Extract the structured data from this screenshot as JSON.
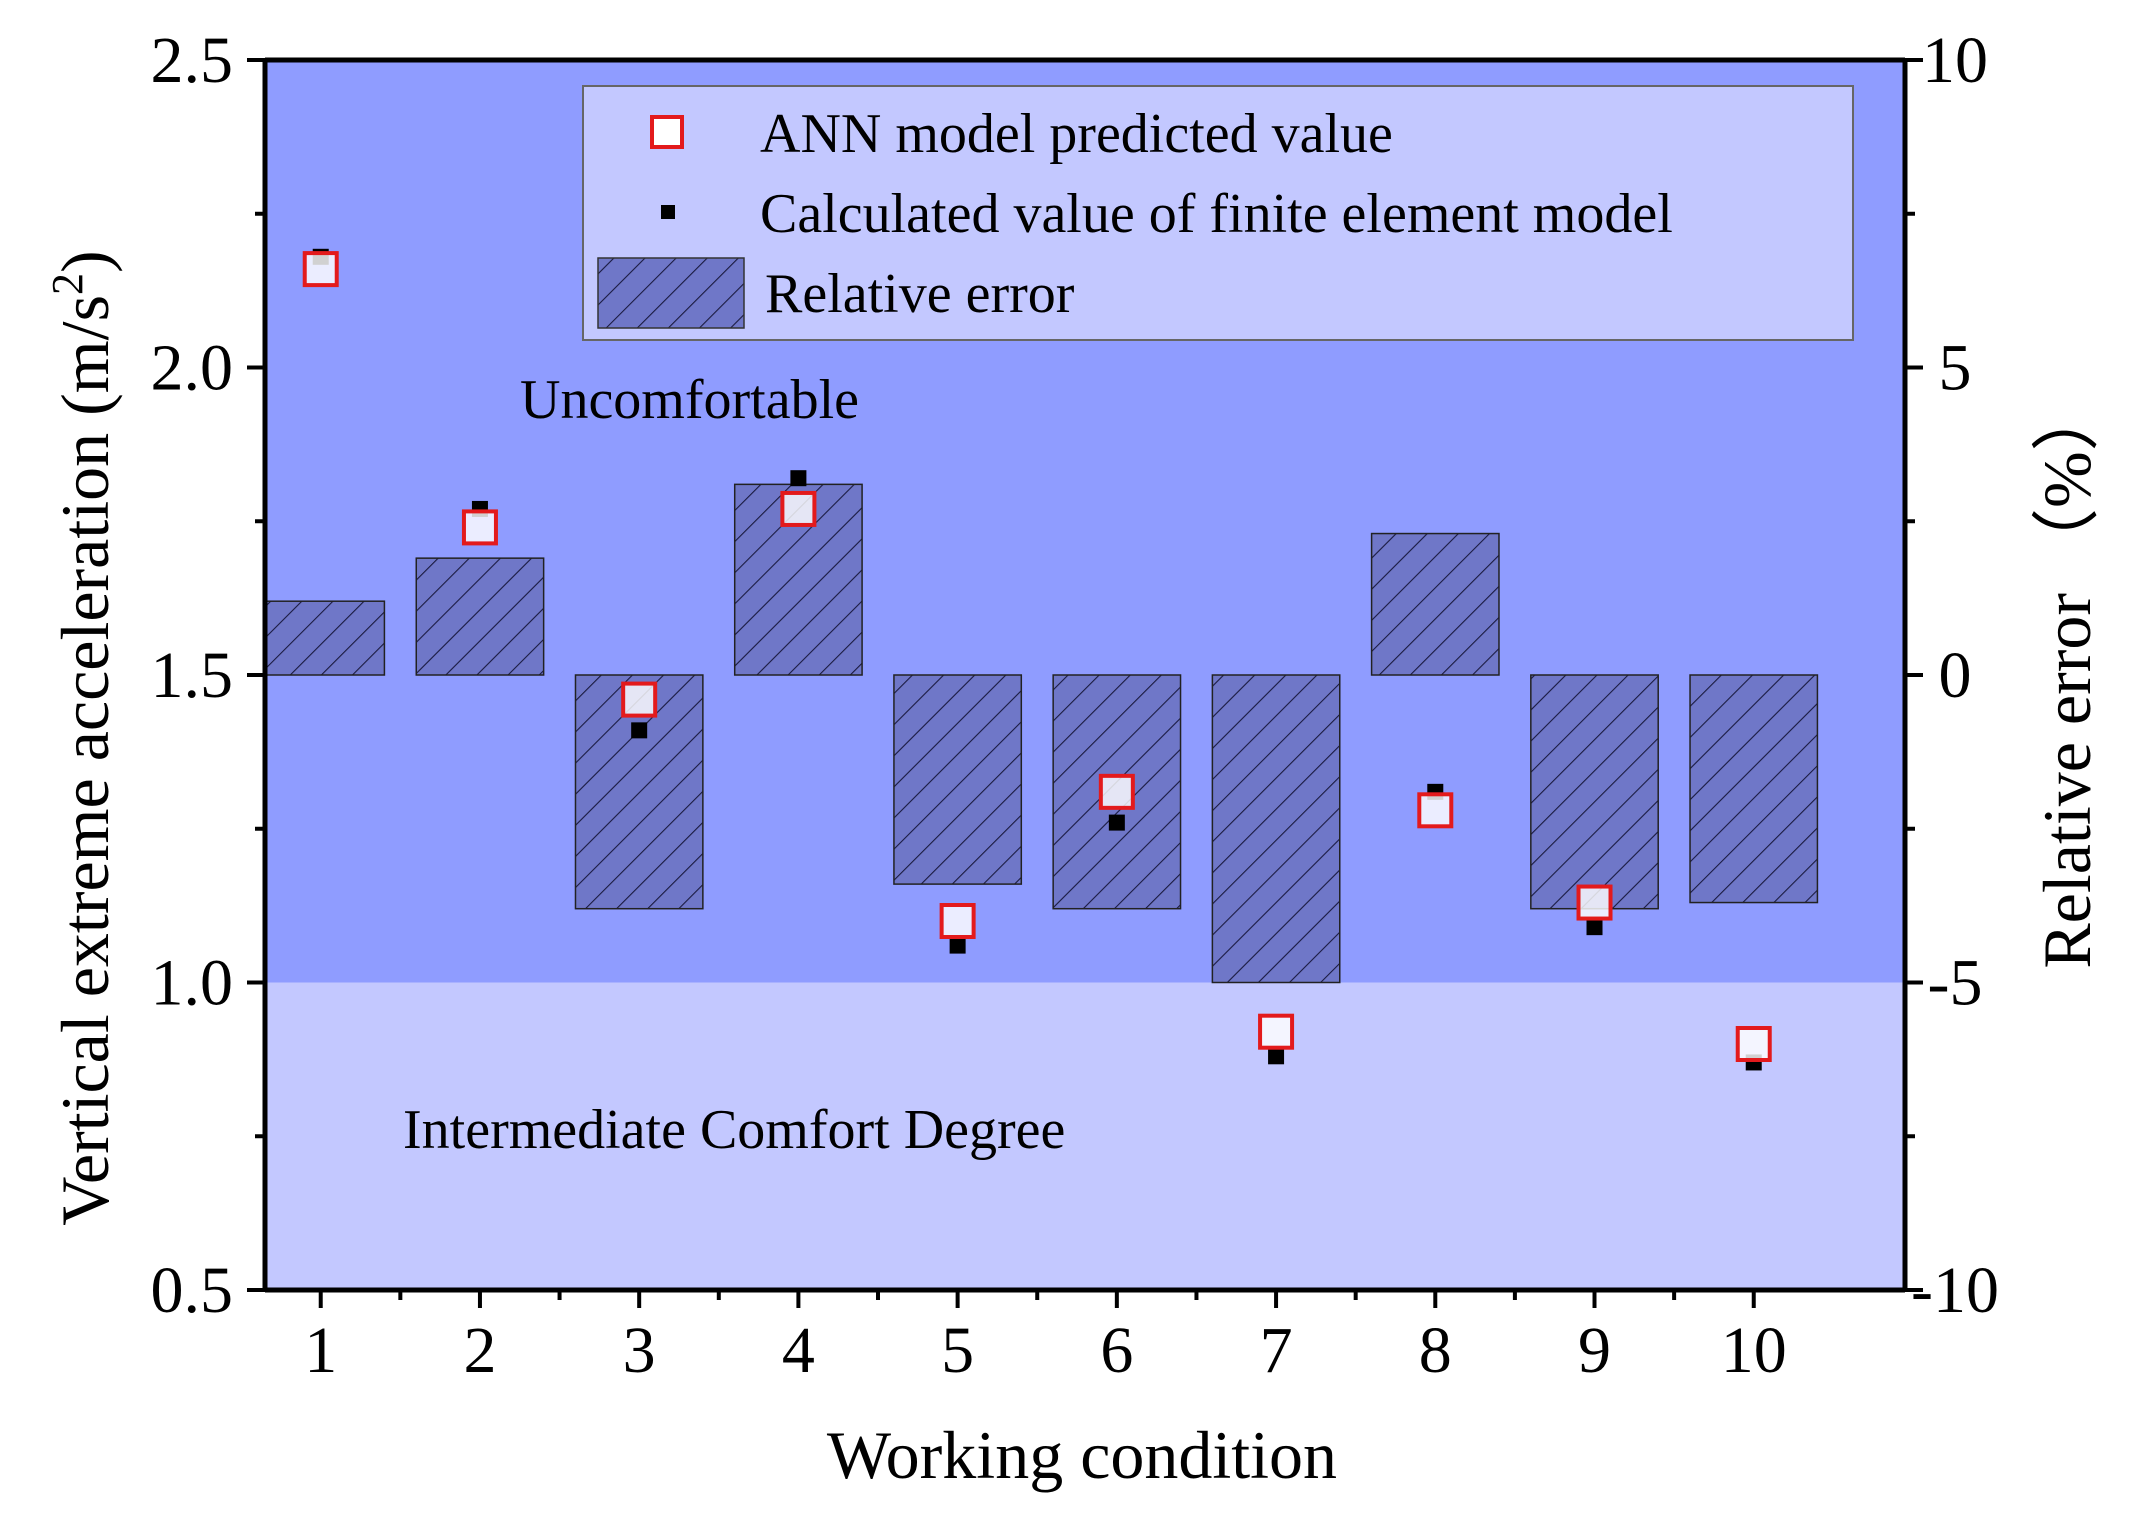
{
  "chart_data": {
    "type": "bar",
    "xlabel": "Working condition",
    "ylabel": "Vertical extreme acceleration (m/s",
    "ylabel_superscript": "2",
    "ylabel_suffix": ")",
    "y2label": "Relative error （%）",
    "categories": [
      "1",
      "2",
      "3",
      "4",
      "5",
      "6",
      "7",
      "8",
      "9",
      "10"
    ],
    "ylim": [
      0.5,
      2.5
    ],
    "yticks": [
      "0.5",
      "1.0",
      "1.5",
      "2.0",
      "2.5"
    ],
    "y2lim": [
      -10,
      10
    ],
    "y2ticks": [
      "-10",
      "-5",
      "0",
      "5",
      "10"
    ],
    "comfort_threshold": 1.0,
    "regions": {
      "upper_label": "Uncomfortable",
      "lower_label": "Intermediate Comfort Degree",
      "upper_color": "#8f9cff",
      "lower_color": "#c3c8ff"
    },
    "series": [
      {
        "name": "ANN model predicted value",
        "axis": "left",
        "marker": "open-square",
        "color": "#e31a1c",
        "values": [
          2.16,
          1.74,
          1.46,
          1.77,
          1.1,
          1.31,
          0.92,
          1.28,
          1.13,
          0.9
        ]
      },
      {
        "name": "Calculated value of finite element model",
        "axis": "left",
        "marker": "filled-square",
        "color": "#000000",
        "values": [
          2.18,
          1.77,
          1.41,
          1.82,
          1.06,
          1.26,
          0.88,
          1.31,
          1.09,
          0.87
        ]
      },
      {
        "name": "Relative error",
        "axis": "right",
        "marker": "hatched-bar",
        "color": "#6f77c8",
        "values": [
          1.2,
          1.9,
          -3.8,
          3.1,
          -3.4,
          -3.8,
          -5.0,
          2.3,
          -3.8,
          -3.7
        ]
      }
    ],
    "legend_position": "top-right",
    "grid": false
  }
}
